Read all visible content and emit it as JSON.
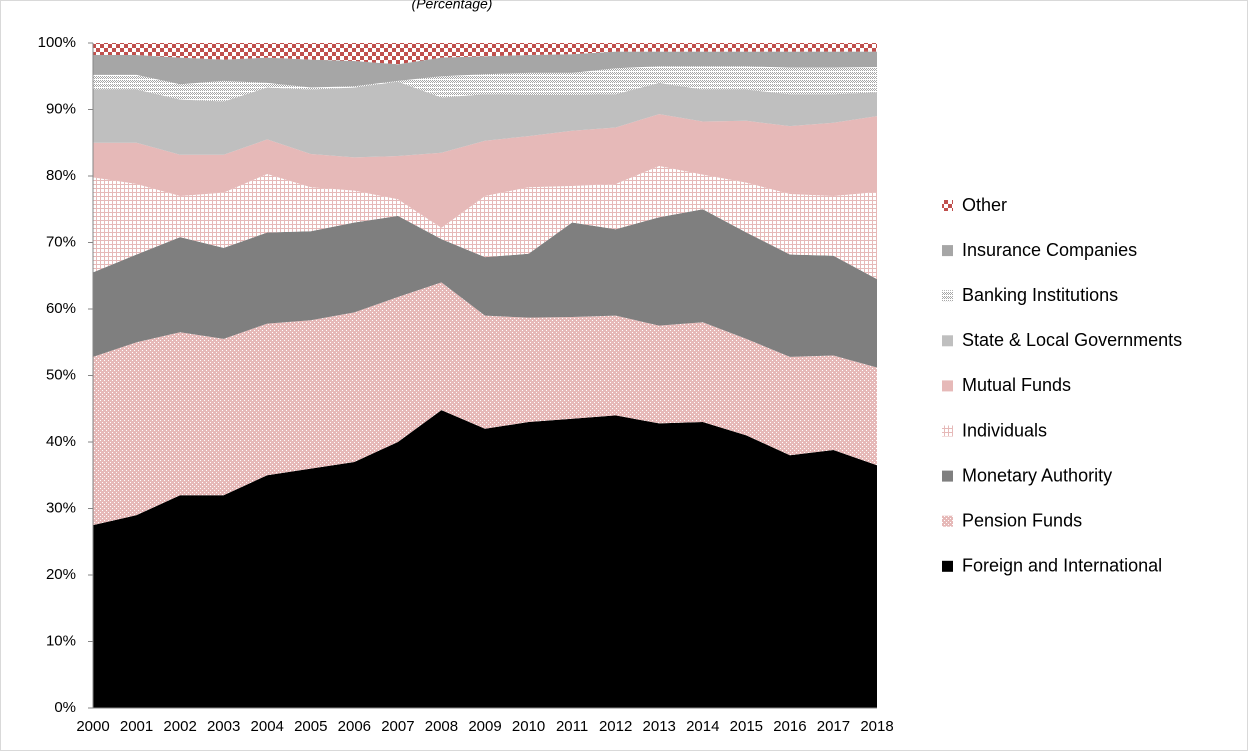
{
  "chart_data": {
    "type": "stacked_area",
    "subtitle": "(Percentage)",
    "categories": [
      "2000",
      "2001",
      "2002",
      "2003",
      "2004",
      "2005",
      "2006",
      "2007",
      "2008",
      "2009",
      "2010",
      "2011",
      "2012",
      "2013",
      "2014",
      "2015",
      "2016",
      "2017",
      "2018"
    ],
    "series": [
      {
        "name": "Foreign and International",
        "color": "#000000",
        "pattern": "solid",
        "values": [
          27.5,
          29,
          32,
          32,
          35,
          36,
          37,
          40,
          44.8,
          42,
          43,
          43.5,
          44,
          42.8,
          43,
          41,
          38,
          38.8,
          36.5
        ]
      },
      {
        "name": "Pension Funds",
        "color": "#e6b9b8",
        "pattern": "dots",
        "values": [
          25.3,
          26,
          24.5,
          23.5,
          22.8,
          22.3,
          22.5,
          21.8,
          19.2,
          17,
          15.7,
          15.3,
          15,
          14.7,
          15,
          14.5,
          14.8,
          14.2,
          14.7
        ]
      },
      {
        "name": "Monetary Authority",
        "color": "#7f7f7f",
        "pattern": "solid",
        "values": [
          12.7,
          13.2,
          14.3,
          13.7,
          13.7,
          13.4,
          13.5,
          12.2,
          6.5,
          8.8,
          9.6,
          14.2,
          13,
          16.3,
          17,
          16,
          15.4,
          15,
          13.3
        ]
      },
      {
        "name": "Individuals",
        "color": "#e6b9b8",
        "pattern": "grid",
        "values": [
          14.3,
          10.6,
          6.2,
          8.3,
          8.8,
          6.6,
          4.8,
          2.5,
          1.7,
          9.2,
          10,
          5.5,
          6.8,
          7.7,
          5.2,
          7.5,
          9.1,
          9,
          13.1
        ]
      },
      {
        "name": "Mutual Funds",
        "color": "#e6b9b8",
        "pattern": "solid",
        "values": [
          5.2,
          6.2,
          6.2,
          5.7,
          5.2,
          5,
          5,
          6.5,
          11.3,
          8.3,
          7.7,
          8.3,
          8.5,
          7.8,
          8,
          9.3,
          10.2,
          11,
          11.4
        ]
      },
      {
        "name": "State & Local Governments",
        "color": "#bfbfbf",
        "pattern": "solid",
        "values": [
          8,
          8,
          8.3,
          8,
          7.8,
          9.7,
          10.5,
          11.2,
          8.3,
          7,
          6.2,
          5.4,
          5,
          4.7,
          4.8,
          4.7,
          4.8,
          4.3,
          3.6
        ]
      },
      {
        "name": "Banking Institutions",
        "color": "#a6a6a6",
        "pattern": "crosshatch",
        "values": [
          2.2,
          2.2,
          2.3,
          3.1,
          0.7,
          0.3,
          0.2,
          0.1,
          3.2,
          3,
          3.3,
          3.3,
          3.9,
          2.5,
          3.5,
          3.5,
          4,
          4,
          3.8
        ]
      },
      {
        "name": "Insurance Companies",
        "color": "#a6a6a6",
        "pattern": "solid",
        "values": [
          3,
          3,
          4,
          3.2,
          3.8,
          4.2,
          3.8,
          2.5,
          2.8,
          2.7,
          2.7,
          2.8,
          2.5,
          2.2,
          2.2,
          2.2,
          2.4,
          2.4,
          2.3
        ]
      },
      {
        "name": "Other",
        "color": "#c0504d",
        "pattern": "checker",
        "values": [
          1.8,
          1.8,
          2.2,
          2.5,
          2.2,
          2.5,
          2.7,
          3.2,
          2.2,
          2,
          1.8,
          1.7,
          1.3,
          1.3,
          1.3,
          1.3,
          1.3,
          1.3,
          1.3
        ]
      }
    ],
    "ylim": [
      0,
      100
    ],
    "yticks": [
      {
        "value": 0,
        "label": "0%"
      },
      {
        "value": 10,
        "label": "10%"
      },
      {
        "value": 20,
        "label": "20%"
      },
      {
        "value": 30,
        "label": "30%"
      },
      {
        "value": 40,
        "label": "40%"
      },
      {
        "value": 50,
        "label": "50%"
      },
      {
        "value": 60,
        "label": "60%"
      },
      {
        "value": 70,
        "label": "70%"
      },
      {
        "value": 80,
        "label": "80%"
      },
      {
        "value": 90,
        "label": "90%"
      },
      {
        "value": 100,
        "label": "100%"
      }
    ],
    "legend": "right"
  }
}
